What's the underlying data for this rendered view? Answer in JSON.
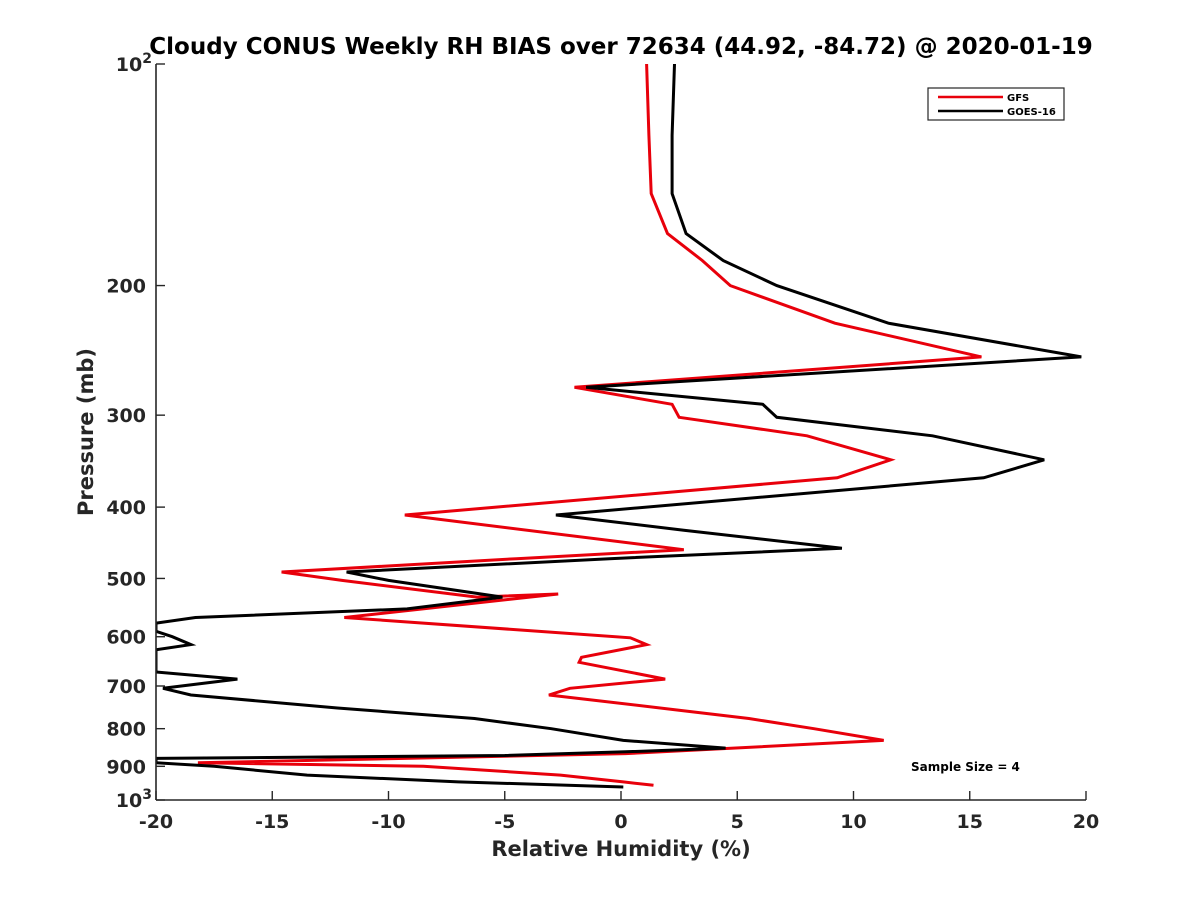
{
  "chart_data": {
    "type": "line",
    "title": "Cloudy CONUS Weekly RH BIAS over 72634 (44.92, -84.72) @ 2020-01-19",
    "xlabel": "Relative Humidity (%)",
    "ylabel": "Pressure (mb)",
    "xlim": [
      -20,
      20
    ],
    "ylim": [
      100,
      1000
    ],
    "yscale": "log",
    "y_reversed": true,
    "x_ticks": [
      "-20",
      "-15",
      "-10",
      "-5",
      "0",
      "5",
      "10",
      "15",
      "20"
    ],
    "y_ticks": [
      {
        "value": 100,
        "base": "10",
        "exp": "2"
      },
      {
        "value": 200,
        "label": "200"
      },
      {
        "value": 300,
        "label": "300"
      },
      {
        "value": 400,
        "label": "400"
      },
      {
        "value": 500,
        "label": "500"
      },
      {
        "value": 600,
        "label": "600"
      },
      {
        "value": 700,
        "label": "700"
      },
      {
        "value": 800,
        "label": "800"
      },
      {
        "value": 900,
        "label": "900"
      },
      {
        "value": 1000,
        "base": "10",
        "exp": "3"
      }
    ],
    "legend_position": "top-right",
    "annotation": "Sample Size = 4",
    "series": [
      {
        "name": "GFS",
        "color": "#e8000b",
        "points": [
          [
            1.1,
            100
          ],
          [
            1.2,
            125
          ],
          [
            1.3,
            150
          ],
          [
            2.0,
            170
          ],
          [
            3.5,
            185
          ],
          [
            4.7,
            200
          ],
          [
            9.2,
            225
          ],
          [
            15.5,
            250
          ],
          [
            -2.0,
            275
          ],
          [
            2.2,
            290
          ],
          [
            2.5,
            302
          ],
          [
            8.0,
            320
          ],
          [
            11.6,
            345
          ],
          [
            9.3,
            365
          ],
          [
            -9.3,
            410
          ],
          [
            2.7,
            457
          ],
          [
            -4.5,
            470
          ],
          [
            -14.6,
            490
          ],
          [
            -12.0,
            503
          ],
          [
            -6.2,
            530
          ],
          [
            -2.7,
            525
          ],
          [
            -11.9,
            565
          ],
          [
            0.4,
            602
          ],
          [
            1.1,
            615
          ],
          [
            -1.7,
            640
          ],
          [
            -1.8,
            650
          ],
          [
            1.9,
            685
          ],
          [
            -2.2,
            705
          ],
          [
            -3.1,
            720
          ],
          [
            2.5,
            755
          ],
          [
            5.5,
            775
          ],
          [
            8.3,
            800
          ],
          [
            11.3,
            830
          ],
          [
            0.2,
            865
          ],
          [
            -18.2,
            890
          ],
          [
            -8.5,
            900
          ],
          [
            -2.6,
            925
          ],
          [
            0.1,
            945
          ],
          [
            1.4,
            955
          ]
        ]
      },
      {
        "name": "GOES-16",
        "color": "#000000",
        "points": [
          [
            2.3,
            100
          ],
          [
            2.2,
            125
          ],
          [
            2.2,
            150
          ],
          [
            2.8,
            170
          ],
          [
            4.4,
            185
          ],
          [
            6.7,
            200
          ],
          [
            11.5,
            225
          ],
          [
            19.8,
            250
          ],
          [
            -1.5,
            275
          ],
          [
            6.1,
            290
          ],
          [
            6.7,
            302
          ],
          [
            13.4,
            320
          ],
          [
            18.2,
            345
          ],
          [
            15.6,
            365
          ],
          [
            -2.8,
            410
          ],
          [
            2.7,
            430
          ],
          [
            9.5,
            455
          ],
          [
            -0.5,
            470
          ],
          [
            -11.8,
            490
          ],
          [
            -10.0,
            503
          ],
          [
            -5.1,
            530
          ],
          [
            -9.2,
            550
          ],
          [
            -18.3,
            565
          ],
          [
            -20.0,
            575
          ],
          [
            -20.0,
            590
          ],
          [
            -19.3,
            600
          ],
          [
            -18.5,
            615
          ],
          [
            -20.0,
            625
          ],
          [
            -20.0,
            670
          ],
          [
            -16.5,
            685
          ],
          [
            -19.7,
            705
          ],
          [
            -18.5,
            720
          ],
          [
            -12.2,
            750
          ],
          [
            -6.3,
            775
          ],
          [
            -3.0,
            800
          ],
          [
            0.1,
            830
          ],
          [
            4.5,
            850
          ],
          [
            0.2,
            860
          ],
          [
            -5.0,
            870
          ],
          [
            -20.0,
            878
          ],
          [
            -20.0,
            890
          ],
          [
            -17.5,
            900
          ],
          [
            -13.5,
            925
          ],
          [
            -7.0,
            945
          ],
          [
            0.1,
            960
          ]
        ]
      }
    ]
  }
}
